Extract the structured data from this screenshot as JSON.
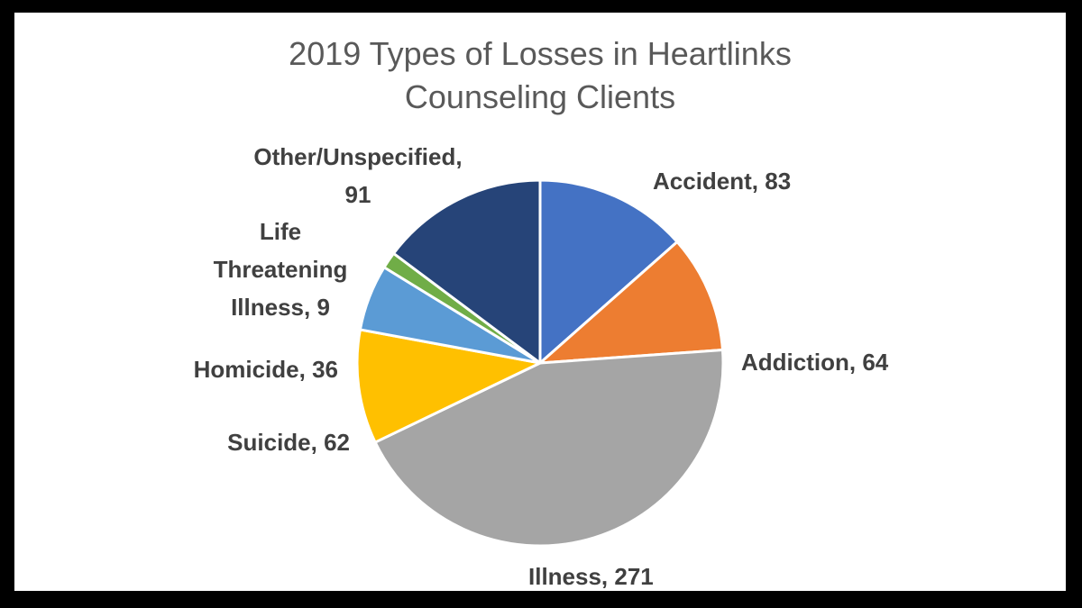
{
  "chart_data": {
    "type": "pie",
    "title_lines": [
      "2019 Types of Losses in Heartlinks",
      "Counseling Clients"
    ],
    "slices": [
      {
        "label_lines": [
          "Accident, 83"
        ],
        "value": 83,
        "color": "#4472C4"
      },
      {
        "label_lines": [
          "Addiction, 64"
        ],
        "value": 64,
        "color": "#ED7D31"
      },
      {
        "label_lines": [
          "Illness, 271"
        ],
        "value": 271,
        "color": "#A5A5A5"
      },
      {
        "label_lines": [
          "Suicide, 62"
        ],
        "value": 62,
        "color": "#FFC000"
      },
      {
        "label_lines": [
          "Homicide, 36"
        ],
        "value": 36,
        "color": "#5B9BD5"
      },
      {
        "label_lines": [
          "Life",
          "Threatening",
          "Illness, 9"
        ],
        "value": 9,
        "color": "#70AD47"
      },
      {
        "label_lines": [
          "Other/Unspecified,",
          "91"
        ],
        "value": 91,
        "color": "#264478"
      }
    ],
    "legend": "none",
    "data_labels": "outside"
  }
}
